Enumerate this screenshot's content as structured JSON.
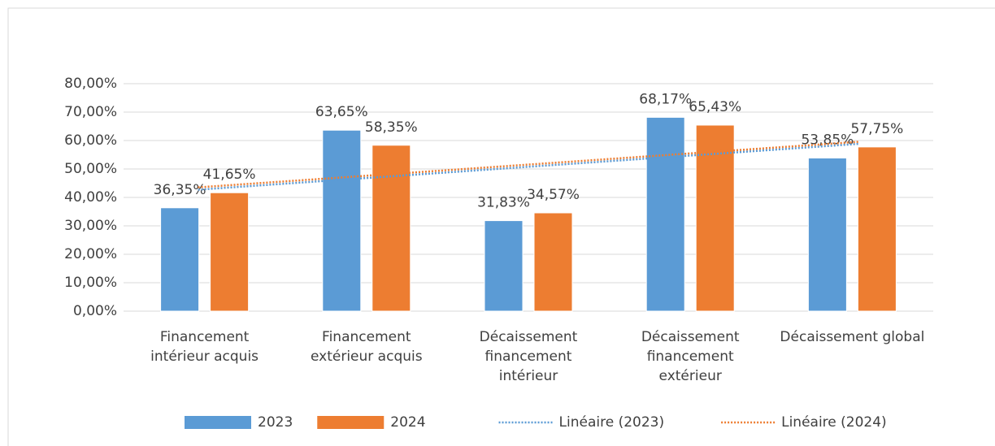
{
  "chart_data": {
    "type": "bar",
    "categories": [
      "Financement\nintérieur acquis",
      "Financement\nextérieur acquis",
      "Décaissement\nfinancement\nintérieur",
      "Décaissement\nfinancement\nextérieur",
      "Décaissement global"
    ],
    "series": [
      {
        "name": "2023",
        "color": "#5b9bd5",
        "values": [
          36.35,
          63.65,
          31.83,
          68.17,
          53.85
        ],
        "value_labels": [
          "36,35%",
          "63,65%",
          "31,83%",
          "68,17%",
          "53,85%"
        ]
      },
      {
        "name": "2024",
        "color": "#ed7d31",
        "values": [
          41.65,
          58.35,
          34.57,
          65.43,
          57.75
        ],
        "value_labels": [
          "41,65%",
          "58,35%",
          "34,57%",
          "65,43%",
          "57,75%"
        ]
      }
    ],
    "trendlines": [
      {
        "name": "Linéaire (2023)",
        "series": 0,
        "color": "#5b9bd5"
      },
      {
        "name": "Linéaire (2024)",
        "series": 1,
        "color": "#ed7d31"
      }
    ],
    "ylim": [
      0,
      80
    ],
    "yticks": [
      {
        "value": 0,
        "label": "0,00%"
      },
      {
        "value": 10,
        "label": "10,00%"
      },
      {
        "value": 20,
        "label": "20,00%"
      },
      {
        "value": 30,
        "label": "30,00%"
      },
      {
        "value": 40,
        "label": "40,00%"
      },
      {
        "value": 50,
        "label": "50,00%"
      },
      {
        "value": 60,
        "label": "60,00%"
      },
      {
        "value": 70,
        "label": "70,00%"
      },
      {
        "value": 80,
        "label": "80,00%"
      }
    ],
    "grid": true
  }
}
